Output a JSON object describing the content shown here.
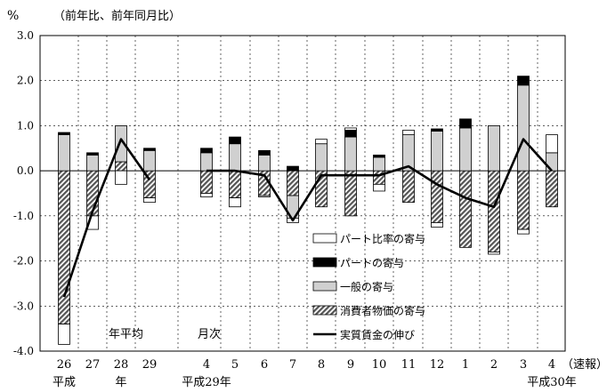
{
  "chart_data": {
    "type": "bar",
    "unit_label": "%",
    "subtitle": "（前年比、前年同月比）",
    "ylim": [
      -4.0,
      3.0
    ],
    "yticks": [
      "3.0",
      "2.0",
      "1.0",
      "0.0",
      "-1.0",
      "-2.0",
      "-3.0",
      "-4.0"
    ],
    "grid": true,
    "categories": [
      "26",
      "27",
      "28",
      "29",
      "4",
      "5",
      "6",
      "7",
      "8",
      "9",
      "10",
      "11",
      "12",
      "1",
      "2",
      "3",
      "4"
    ],
    "category_sublabels": {
      "heisei": "平成",
      "nen": "年",
      "heisei29": "平成29年",
      "heisei30": "平成30年",
      "sokuho": "（速報）"
    },
    "group_labels": {
      "annual": "年平均",
      "monthly": "月次"
    },
    "legend_position": "bottom-right",
    "series": [
      {
        "name": "パート比率の寄与",
        "key": "part_ratio",
        "color": "#ffffff",
        "values": [
          -0.45,
          -0.3,
          -0.3,
          -0.1,
          -0.08,
          -0.2,
          -0.03,
          -0.1,
          0.1,
          0.05,
          -0.15,
          0.1,
          -0.1,
          0.0,
          -0.05,
          -0.1,
          0.4
        ]
      },
      {
        "name": "パートの寄与",
        "key": "part",
        "color": "#000000",
        "values": [
          0.05,
          0.05,
          0.0,
          0.05,
          0.1,
          0.15,
          0.1,
          0.1,
          0.0,
          0.15,
          0.05,
          0.0,
          0.05,
          0.2,
          0.0,
          0.2,
          0.0
        ]
      },
      {
        "name": "一般の寄与",
        "key": "general",
        "color": "#d0d0d0",
        "values": [
          0.8,
          0.35,
          0.8,
          0.45,
          0.4,
          0.6,
          0.35,
          -0.5,
          0.6,
          0.75,
          0.3,
          0.8,
          0.88,
          0.95,
          1.0,
          1.9,
          0.4
        ]
      },
      {
        "name": "消費者物価の寄与",
        "key": "cpi",
        "color": "#777777",
        "values": [
          -3.4,
          -1.0,
          0.2,
          -0.6,
          -0.5,
          -0.6,
          -0.55,
          -0.55,
          -0.8,
          -1.0,
          -0.3,
          -0.7,
          -1.15,
          -1.7,
          -1.8,
          -1.3,
          -0.8
        ]
      },
      {
        "name": "実質賃金の伸び",
        "key": "real_wage",
        "color": "#000000",
        "values": [
          -2.8,
          -0.9,
          0.7,
          -0.2,
          0.0,
          0.0,
          -0.1,
          -1.1,
          -0.1,
          -0.1,
          -0.1,
          0.1,
          -0.3,
          -0.6,
          -0.8,
          0.7,
          0.0
        ]
      }
    ],
    "line_segments": [
      [
        0,
        3
      ],
      [
        4,
        16
      ]
    ]
  }
}
